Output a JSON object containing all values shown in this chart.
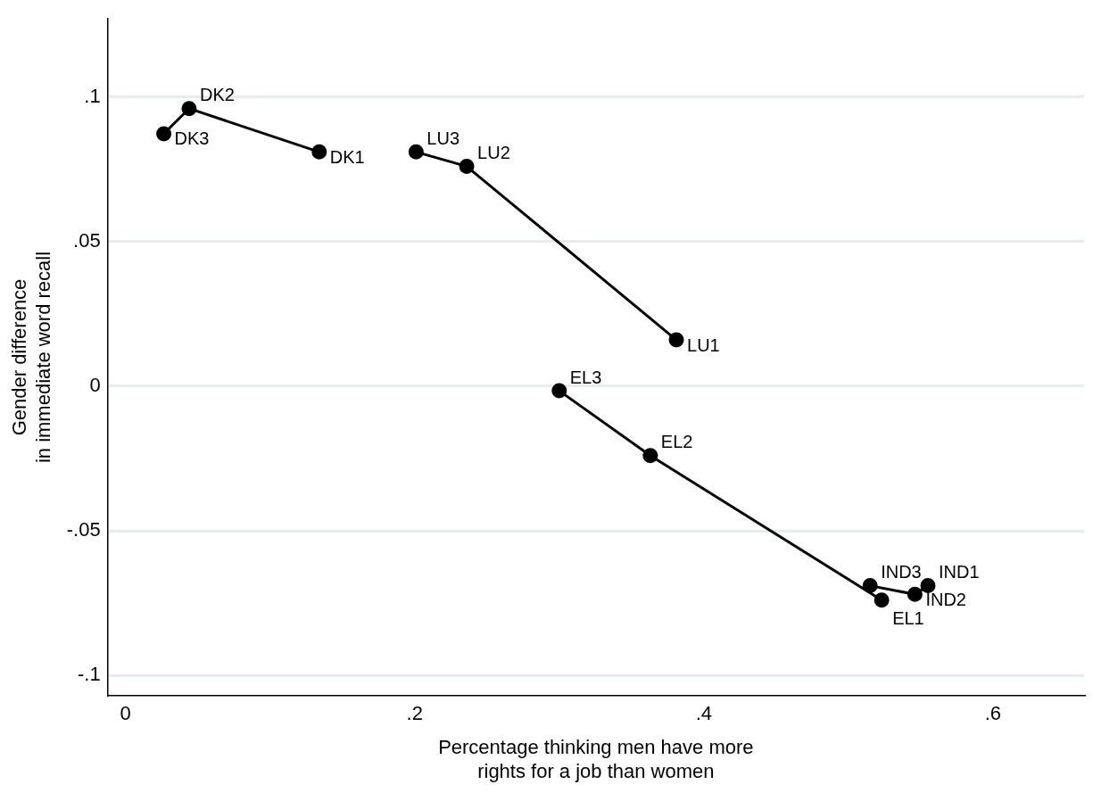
{
  "chart_data": {
    "type": "line",
    "xlabel": "Percentage thinking men have more\nrights for a job than women",
    "ylabel": "Gender difference\nin immediate word recall",
    "series": [
      {
        "color": "#000000",
        "x": [
          0.0265,
          0.044,
          0.134
        ],
        "values": [
          0.0873,
          0.096,
          0.081
        ]
      },
      {
        "color": "#000000",
        "x": [
          0.201,
          0.236,
          0.381
        ],
        "values": [
          0.081,
          0.076,
          0.016
        ]
      },
      {
        "color": "#000000",
        "x": [
          0.3,
          0.363,
          0.523
        ],
        "values": [
          -0.0016,
          -0.024,
          -0.074
        ]
      },
      {
        "color": "#000000",
        "x": [
          0.515,
          0.546,
          0.555
        ],
        "values": [
          -0.069,
          -0.072,
          -0.069
        ]
      }
    ],
    "annotations": [
      {
        "text": "DK3",
        "x": 0.0265,
        "y": 0.0873
      },
      {
        "text": "DK2",
        "x": 0.044,
        "y": 0.096
      },
      {
        "text": "DK1",
        "x": 0.134,
        "y": 0.081
      },
      {
        "text": "LU3",
        "x": 0.201,
        "y": 0.081
      },
      {
        "text": "LU2",
        "x": 0.236,
        "y": 0.076
      },
      {
        "text": "LU1",
        "x": 0.381,
        "y": 0.016
      },
      {
        "text": "EL3",
        "x": 0.3,
        "y": -0.0016
      },
      {
        "text": "EL2",
        "x": 0.363,
        "y": -0.024
      },
      {
        "text": "EL1",
        "x": 0.523,
        "y": -0.074
      },
      {
        "text": "IND3",
        "x": 0.515,
        "y": -0.069
      },
      {
        "text": "IND2",
        "x": 0.546,
        "y": -0.072
      },
      {
        "text": "IND1",
        "x": 0.555,
        "y": -0.069
      }
    ],
    "xlim": [
      -0.0123,
      0.663
    ],
    "ylim": [
      -0.107,
      0.127
    ],
    "xticks": [
      0,
      {
        "value": 0.2,
        "label": ".2"
      },
      {
        "value": 0.4,
        "label": ".4"
      },
      {
        "value": 0.6,
        "label": ".6"
      }
    ],
    "yticks": [
      {
        "value": -0.1,
        "label": "-.1"
      },
      {
        "value": -0.05,
        "label": "-.05"
      },
      0,
      {
        "value": 0.05,
        "label": ".05"
      },
      {
        "value": 0.1,
        "label": ".1"
      }
    ],
    "grid": "y",
    "legend": false,
    "marker": "circle",
    "line_style": "solid"
  }
}
